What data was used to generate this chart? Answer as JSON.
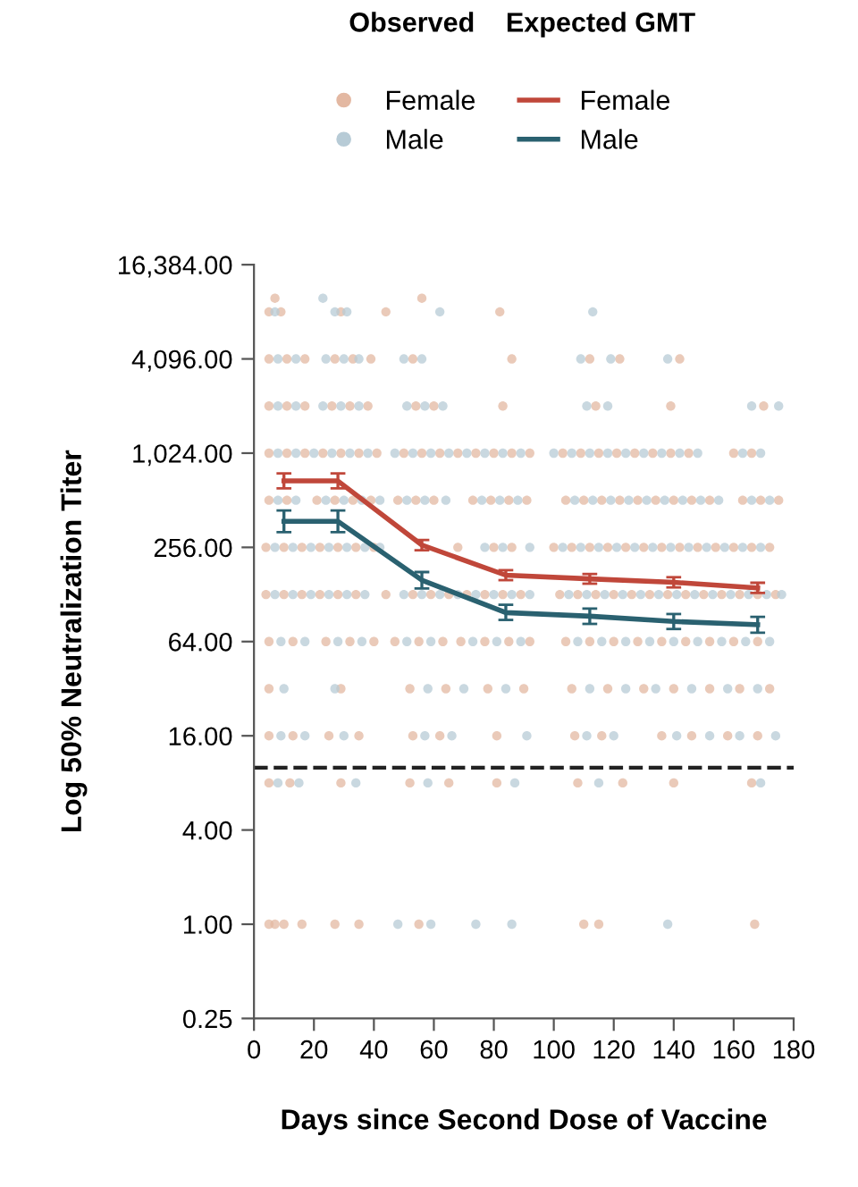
{
  "chart_data": {
    "type": "scatter",
    "xlabel": "Days since Second Dose of Vaccine",
    "ylabel": "Log 50% Neutralization Titer",
    "annotations": [
      "Observed",
      "Expected GMT"
    ],
    "log": "y",
    "grid": false,
    "legend": "top",
    "marker": "circle",
    "xlim": [
      0,
      180
    ],
    "xticks": [
      0,
      20,
      40,
      60,
      80,
      100,
      120,
      140,
      160,
      180
    ],
    "ylim": [
      0.25,
      16384
    ],
    "yticks": [
      {
        "value": 0.25,
        "label": "0.25"
      },
      {
        "value": 1,
        "label": "1.00"
      },
      {
        "value": 4,
        "label": "4.00"
      },
      {
        "value": 16,
        "label": "16.00"
      },
      {
        "value": 64,
        "label": "64.00"
      },
      {
        "value": 256,
        "label": "256.00"
      },
      {
        "value": 1024,
        "label": "1,024.00"
      },
      {
        "value": 4096,
        "label": "4,096.00"
      },
      {
        "value": 16384,
        "label": "16,384.00"
      }
    ],
    "ref_lines": [
      {
        "axis": "y",
        "value": 10,
        "color": "#222222",
        "line_style": "dashed"
      }
    ],
    "series": [
      {
        "name": "Female",
        "color": "#e3b8a2",
        "x": [
          7,
          56,
          5,
          9,
          29,
          44,
          82,
          5,
          11,
          17,
          27,
          33,
          39,
          53,
          86,
          112,
          122,
          142,
          5,
          11,
          17,
          26,
          32,
          38,
          54,
          60,
          83,
          114,
          139,
          170,
          5,
          11,
          17,
          23,
          29,
          35,
          41,
          50,
          56,
          62,
          68,
          74,
          80,
          86,
          92,
          103,
          109,
          115,
          121,
          127,
          133,
          139,
          145,
          160,
          166,
          5,
          11,
          21,
          27,
          33,
          39,
          48,
          54,
          60,
          73,
          79,
          85,
          91,
          104,
          110,
          116,
          122,
          128,
          134,
          140,
          146,
          152,
          163,
          169,
          175,
          4,
          10,
          16,
          22,
          28,
          34,
          40,
          68,
          80,
          86,
          100,
          106,
          112,
          118,
          124,
          130,
          136,
          142,
          148,
          154,
          160,
          166,
          172,
          4,
          10,
          16,
          22,
          28,
          34,
          44,
          53,
          59,
          65,
          71,
          77,
          83,
          89,
          102,
          108,
          114,
          120,
          126,
          132,
          138,
          144,
          150,
          156,
          162,
          168,
          174,
          5,
          13,
          24,
          32,
          40,
          47,
          55,
          63,
          69,
          77,
          85,
          92,
          104,
          112,
          120,
          128,
          136,
          144,
          152,
          160,
          168,
          5,
          29,
          52,
          64,
          78,
          90,
          106,
          118,
          130,
          140,
          152,
          162,
          172,
          5,
          13,
          25,
          35,
          53,
          62,
          81,
          107,
          116,
          136,
          146,
          158,
          168,
          5,
          12,
          29,
          52,
          65,
          81,
          108,
          123,
          140,
          166,
          5,
          7,
          10,
          16,
          27,
          35,
          55,
          110,
          115,
          167
        ],
        "values": [
          10000,
          10000,
          8192,
          8192,
          8192,
          8192,
          8192,
          4096,
          4096,
          4096,
          4096,
          4096,
          4096,
          4096,
          4096,
          4096,
          4096,
          4096,
          2048,
          2048,
          2048,
          2048,
          2048,
          2048,
          2048,
          2048,
          2048,
          2048,
          2048,
          2048,
          1024,
          1024,
          1024,
          1024,
          1024,
          1024,
          1024,
          1024,
          1024,
          1024,
          1024,
          1024,
          1024,
          1024,
          1024,
          1024,
          1024,
          1024,
          1024,
          1024,
          1024,
          1024,
          1024,
          1024,
          1024,
          512,
          512,
          512,
          512,
          512,
          512,
          512,
          512,
          512,
          512,
          512,
          512,
          512,
          512,
          512,
          512,
          512,
          512,
          512,
          512,
          512,
          512,
          512,
          512,
          512,
          256,
          256,
          256,
          256,
          256,
          256,
          256,
          256,
          256,
          256,
          256,
          256,
          256,
          256,
          256,
          256,
          256,
          256,
          256,
          256,
          256,
          256,
          256,
          128,
          128,
          128,
          128,
          128,
          128,
          128,
          128,
          128,
          128,
          128,
          128,
          128,
          128,
          128,
          128,
          128,
          128,
          128,
          128,
          128,
          128,
          128,
          128,
          128,
          128,
          128,
          64,
          64,
          64,
          64,
          64,
          64,
          64,
          64,
          64,
          64,
          64,
          64,
          64,
          64,
          64,
          64,
          64,
          64,
          64,
          64,
          64,
          32,
          32,
          32,
          32,
          32,
          32,
          32,
          32,
          32,
          32,
          32,
          32,
          32,
          16,
          16,
          16,
          16,
          16,
          16,
          16,
          16,
          16,
          16,
          16,
          16,
          16,
          8,
          8,
          8,
          8,
          8,
          8,
          8,
          8,
          8,
          8,
          1,
          1,
          1,
          1,
          1,
          1,
          1,
          1,
          1,
          1
        ]
      },
      {
        "name": "Male",
        "color": "#b7cbd6",
        "x": [
          23,
          7,
          27,
          31,
          62,
          113,
          8,
          14,
          24,
          30,
          35,
          50,
          56,
          109,
          119,
          138,
          8,
          14,
          23,
          29,
          35,
          51,
          57,
          63,
          111,
          118,
          166,
          175,
          8,
          14,
          20,
          26,
          32,
          38,
          47,
          53,
          59,
          65,
          71,
          77,
          83,
          89,
          100,
          106,
          112,
          118,
          124,
          130,
          136,
          142,
          148,
          163,
          169,
          8,
          14,
          24,
          30,
          36,
          42,
          51,
          57,
          64,
          76,
          82,
          88,
          107,
          113,
          119,
          125,
          131,
          137,
          143,
          149,
          155,
          166,
          172,
          7,
          13,
          19,
          25,
          31,
          37,
          42,
          77,
          83,
          92,
          103,
          109,
          115,
          121,
          127,
          133,
          139,
          145,
          151,
          157,
          163,
          169,
          7,
          13,
          19,
          25,
          31,
          37,
          50,
          56,
          62,
          68,
          74,
          80,
          86,
          92,
          105,
          111,
          117,
          123,
          129,
          135,
          141,
          147,
          153,
          159,
          165,
          171,
          176,
          9,
          17,
          28,
          36,
          51,
          59,
          73,
          81,
          89,
          108,
          116,
          124,
          132,
          140,
          148,
          156,
          164,
          172,
          10,
          27,
          58,
          70,
          84,
          112,
          124,
          134,
          146,
          158,
          168,
          9,
          17,
          30,
          57,
          66,
          91,
          111,
          120,
          141,
          152,
          162,
          174,
          8,
          15,
          34,
          58,
          87,
          115,
          169,
          48,
          59,
          74,
          86,
          138
        ],
        "values": [
          10000,
          8192,
          8192,
          8192,
          8192,
          8192,
          4096,
          4096,
          4096,
          4096,
          4096,
          4096,
          4096,
          4096,
          4096,
          4096,
          2048,
          2048,
          2048,
          2048,
          2048,
          2048,
          2048,
          2048,
          2048,
          2048,
          2048,
          2048,
          1024,
          1024,
          1024,
          1024,
          1024,
          1024,
          1024,
          1024,
          1024,
          1024,
          1024,
          1024,
          1024,
          1024,
          1024,
          1024,
          1024,
          1024,
          1024,
          1024,
          1024,
          1024,
          1024,
          1024,
          1024,
          512,
          512,
          512,
          512,
          512,
          512,
          512,
          512,
          512,
          512,
          512,
          512,
          512,
          512,
          512,
          512,
          512,
          512,
          512,
          512,
          512,
          512,
          512,
          256,
          256,
          256,
          256,
          256,
          256,
          256,
          256,
          256,
          256,
          256,
          256,
          256,
          256,
          256,
          256,
          256,
          256,
          256,
          256,
          256,
          256,
          128,
          128,
          128,
          128,
          128,
          128,
          128,
          128,
          128,
          128,
          128,
          128,
          128,
          128,
          128,
          128,
          128,
          128,
          128,
          128,
          128,
          128,
          128,
          128,
          128,
          128,
          128,
          64,
          64,
          64,
          64,
          64,
          64,
          64,
          64,
          64,
          64,
          64,
          64,
          64,
          64,
          64,
          64,
          64,
          64,
          32,
          32,
          32,
          32,
          32,
          32,
          32,
          32,
          32,
          32,
          32,
          16,
          16,
          16,
          16,
          16,
          16,
          16,
          16,
          16,
          16,
          16,
          16,
          8,
          8,
          8,
          8,
          8,
          8,
          8,
          1,
          1,
          1,
          1,
          1
        ]
      },
      {
        "name": "Female",
        "type": "line",
        "color": "#c0473a",
        "marker": "none",
        "x": [
          10,
          28,
          56,
          84,
          112,
          140,
          168
        ],
        "values": [
          680,
          680,
          265,
          170,
          161,
          153,
          141
        ],
        "errors": [
          [
            610,
            760
          ],
          [
            610,
            760
          ],
          [
            245,
            285
          ],
          [
            158,
            183
          ],
          [
            150,
            173
          ],
          [
            142,
            165
          ],
          [
            131,
            152
          ]
        ]
      },
      {
        "name": "Male",
        "type": "line",
        "color": "#2a6170",
        "marker": "none",
        "x": [
          10,
          28,
          56,
          84,
          112,
          140,
          168
        ],
        "values": [
          375,
          375,
          158,
          98,
          93,
          86,
          82
        ],
        "errors": [
          [
            320,
            440
          ],
          [
            320,
            440
          ],
          [
            140,
            178
          ],
          [
            88,
            110
          ],
          [
            83,
            104
          ],
          [
            77,
            96
          ],
          [
            73,
            92
          ]
        ]
      }
    ]
  }
}
